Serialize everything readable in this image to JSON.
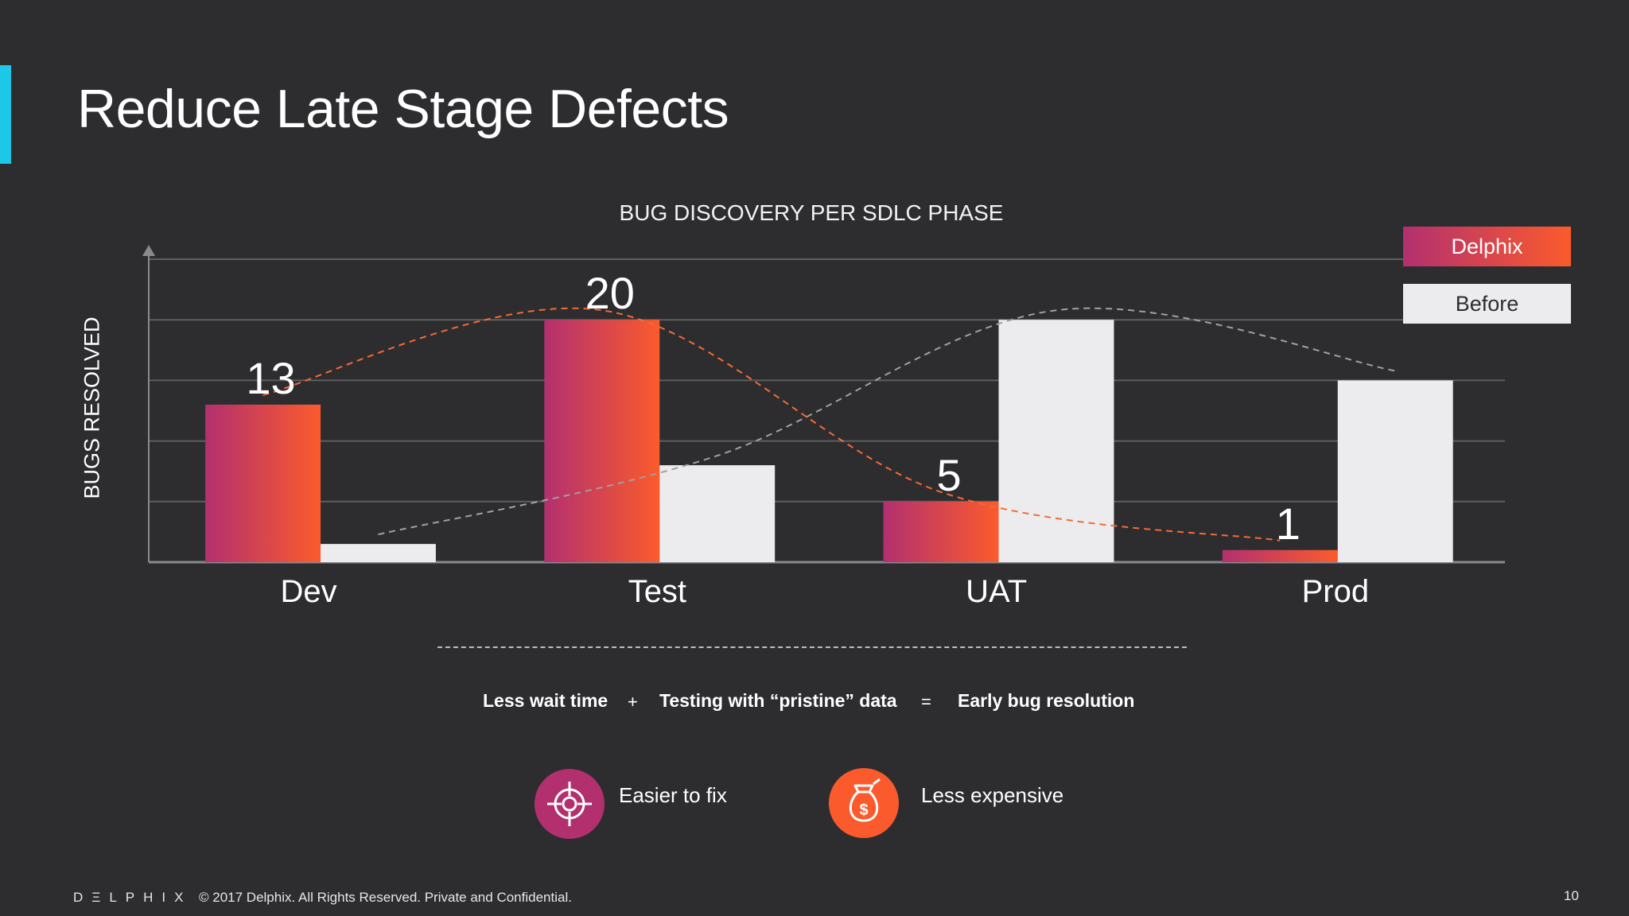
{
  "slide": {
    "title": "Reduce Late Stage Defects",
    "page_number": "10",
    "accent_color": "#1cc7e8",
    "background_color": "#2d2d2f"
  },
  "chart_data": {
    "type": "bar",
    "title": "BUG DISCOVERY PER SDLC PHASE",
    "xlabel": "",
    "ylabel": "BUGS RESOLVED",
    "categories": [
      "Dev",
      "Test",
      "UAT",
      "Prod"
    ],
    "series": [
      {
        "name": "Delphix",
        "values": [
          13,
          20,
          5,
          1
        ],
        "color_start": "#b3306f",
        "color_end": "#fb5b2c",
        "data_labels": [
          "13",
          "20",
          "5",
          "1"
        ]
      },
      {
        "name": "Before",
        "values": [
          1.5,
          8,
          20,
          15
        ],
        "color": "#ececee"
      }
    ],
    "trend_lines": [
      {
        "series": "Delphix",
        "style": "dashed",
        "color": "#f46a35"
      },
      {
        "series": "Before",
        "style": "dashed",
        "color": "#a0a0a0"
      }
    ],
    "ylim": [
      0,
      25
    ],
    "grid": true,
    "legend_position": "top-right"
  },
  "equation": {
    "term1": "Less wait time",
    "plus": "+",
    "term2": "Testing with “pristine” data",
    "equals": "=",
    "result": "Early bug resolution"
  },
  "benefits": [
    {
      "icon": "target-crosshair-icon",
      "label": "Easier to fix",
      "color": "#b3306f"
    },
    {
      "icon": "money-bag-icon",
      "label": "Less expensive",
      "color": "#fb5b2c"
    }
  ],
  "footer": {
    "logo": "DΞLPHIX",
    "copyright": "© 2017 Delphix. All Rights Reserved. Private and Confidential."
  }
}
